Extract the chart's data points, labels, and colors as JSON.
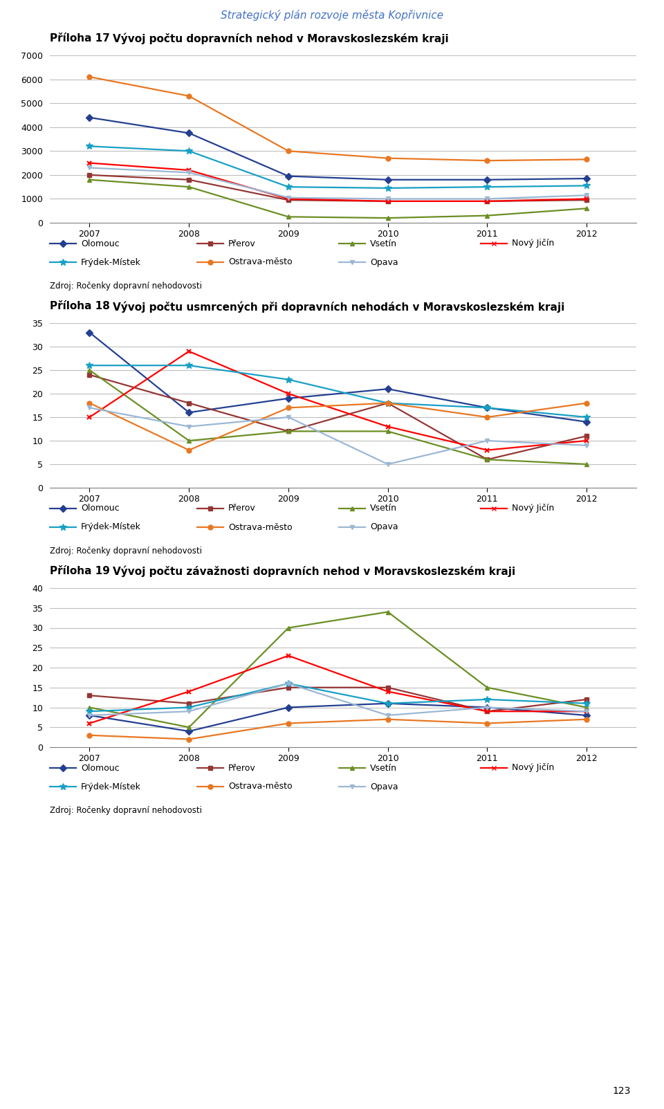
{
  "page_title": "Strategický plán rozvoje města Kopřivnice",
  "page_number": "123",
  "years": [
    2007,
    2008,
    2009,
    2010,
    2011,
    2012
  ],
  "chart1": {
    "prefix": "Příloha 17",
    "title": "Vývoj počtu dopravních nehod v Moravskoslezském kraji",
    "ylim": [
      0,
      7000
    ],
    "yticks": [
      0,
      1000,
      2000,
      3000,
      4000,
      5000,
      6000,
      7000
    ],
    "series": {
      "Olomouc": [
        4400,
        3750,
        1950,
        1800,
        1800,
        1850
      ],
      "Přerov": [
        2000,
        1800,
        950,
        900,
        900,
        950
      ],
      "Vsetín": [
        1800,
        1500,
        250,
        200,
        300,
        600
      ],
      "Nový Jičín": [
        2500,
        2200,
        1000,
        900,
        900,
        1000
      ],
      "Frýdek-Místek": [
        3200,
        3000,
        1500,
        1450,
        1500,
        1550
      ],
      "Ostrava-město": [
        6100,
        5300,
        3000,
        2700,
        2600,
        2650
      ],
      "Opava": [
        2300,
        2100,
        1050,
        1000,
        1000,
        1150
      ]
    },
    "source": "Zdroj: Ročenky dopravní nehodovosti"
  },
  "chart2": {
    "prefix": "Příloha 18",
    "title": "Vývoj počtu usmrcených při dopravních nehodách v Moravskoslezském kraji",
    "ylim": [
      0,
      35
    ],
    "yticks": [
      0,
      5,
      10,
      15,
      20,
      25,
      30,
      35
    ],
    "series": {
      "Olomouc": [
        33,
        16,
        19,
        21,
        17,
        14
      ],
      "Přerov": [
        24,
        18,
        12,
        18,
        6,
        11
      ],
      "Vsetín": [
        25,
        10,
        12,
        12,
        6,
        5
      ],
      "Nový Jičín": [
        15,
        29,
        20,
        13,
        8,
        10
      ],
      "Frýdek-Místek": [
        26,
        26,
        23,
        18,
        17,
        15
      ],
      "Ostrava-město": [
        18,
        8,
        17,
        18,
        15,
        18
      ],
      "Opava": [
        17,
        13,
        15,
        5,
        10,
        9
      ]
    },
    "source": "Zdroj: Ročenky dopravní nehodovosti"
  },
  "chart3": {
    "prefix": "Příloha 19",
    "title": "Vývoj počtu závažnosti dopravních nehod v Moravskoslezském kraji",
    "ylim": [
      0,
      40
    ],
    "yticks": [
      0,
      5,
      10,
      15,
      20,
      25,
      30,
      35,
      40
    ],
    "series": {
      "Olomouc": [
        8,
        4,
        10,
        11,
        10,
        8
      ],
      "Přerov": [
        13,
        11,
        15,
        15,
        9,
        12
      ],
      "Vsetín": [
        10,
        5,
        30,
        34,
        15,
        10
      ],
      "Nový Jičín": [
        6,
        14,
        23,
        14,
        9,
        9
      ],
      "Frýdek-Místek": [
        9,
        10,
        16,
        11,
        12,
        11
      ],
      "Ostrava-město": [
        3,
        2,
        6,
        7,
        6,
        7
      ],
      "Opava": [
        8,
        9,
        16,
        8,
        10,
        9
      ]
    },
    "source": "Zdroj: Ročenky dopravní nehodovosti"
  },
  "series_styles": {
    "Olomouc": {
      "color": "#243F91",
      "marker": "D"
    },
    "Přerov": {
      "color": "#943634",
      "marker": "s"
    },
    "Vsetín": {
      "color": "#6B8E23",
      "marker": "^"
    },
    "Nový Jičín": {
      "color": "#FF0000",
      "marker": "x"
    },
    "Frýdek-Místek": {
      "color": "#17A0C5",
      "marker": "*"
    },
    "Ostrava-město": {
      "color": "#E87722",
      "marker": "o"
    },
    "Opava": {
      "color": "#9BB7D4",
      "marker": "v"
    }
  },
  "legend_order": [
    "Olomouc",
    "Přerov",
    "Vsetín",
    "Nový Jičín",
    "Frýdek-Místek",
    "Ostrava-město",
    "Opava"
  ],
  "bg": "#FFFFFF",
  "grid_color": "#BFBFBF",
  "title_color": "#4472C4",
  "tick_fontsize": 9,
  "legend_fontsize": 9,
  "source_fontsize": 8.5,
  "page_title_fontsize": 11,
  "chart_title_fontsize": 11
}
